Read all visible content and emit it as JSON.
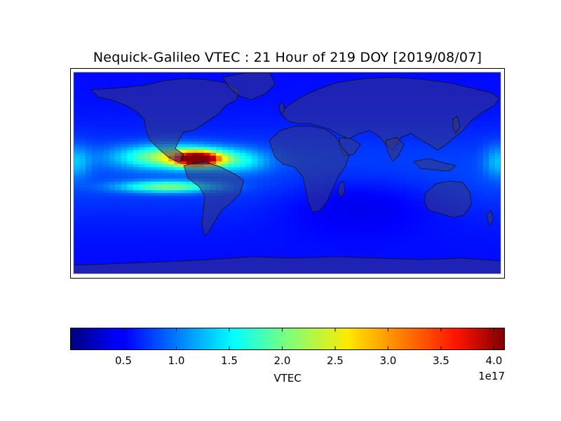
{
  "chart_data": {
    "type": "heatmap",
    "title": "Nequick-Galileo VTEC : 21 Hour of 219 DOY [2019/08/07]",
    "colorbar": {
      "label": "VTEC",
      "range": [
        0.0,
        4.1
      ],
      "ticks": [
        "0.5",
        "1.0",
        "1.5",
        "2.0",
        "2.5",
        "3.0",
        "3.5",
        "4.0"
      ],
      "tick_values": [
        0.5,
        1.0,
        1.5,
        2.0,
        2.5,
        3.0,
        3.5,
        4.0
      ],
      "scale_label": "1e17",
      "colormap": "jet",
      "orientation": "horizontal"
    },
    "map": {
      "projection": "equirectangular",
      "lon_range": [
        -180,
        180
      ],
      "lat_range": [
        -87.5,
        87.5
      ],
      "land_overlay": true,
      "coastlines": true
    },
    "peak": {
      "lon": -75,
      "lat": 12,
      "value": 4.1
    }
  }
}
